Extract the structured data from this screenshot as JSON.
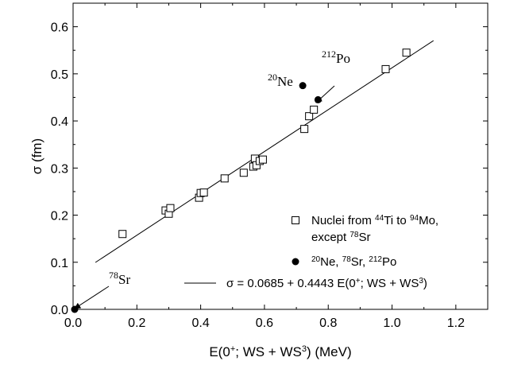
{
  "chart_data": {
    "type": "scatter",
    "xlabel_parts": [
      "E(0",
      "+",
      "; WS + WS",
      "3",
      ") (MeV)"
    ],
    "ylabel": "σ (fm)",
    "xlim": [
      0.0,
      1.3
    ],
    "ylim": [
      0.0,
      0.65
    ],
    "xticks": [
      "0.0",
      "0.2",
      "0.4",
      "0.6",
      "0.8",
      "1.0",
      "1.2"
    ],
    "yticks": [
      "0.0",
      "0.1",
      "0.2",
      "0.3",
      "0.4",
      "0.5",
      "0.6"
    ],
    "grid": false,
    "legend_position": "bottom-right",
    "series": [
      {
        "marker": "open-square",
        "legend_lines": [
          [
            "Nuclei from ",
            "44",
            "Ti to ",
            "94",
            "Mo,"
          ],
          [
            "except ",
            "78",
            "Sr"
          ]
        ],
        "points": [
          [
            0.155,
            0.16
          ],
          [
            0.29,
            0.21
          ],
          [
            0.3,
            0.203
          ],
          [
            0.305,
            0.215
          ],
          [
            0.395,
            0.237
          ],
          [
            0.4,
            0.247
          ],
          [
            0.41,
            0.248
          ],
          [
            0.475,
            0.278
          ],
          [
            0.535,
            0.29
          ],
          [
            0.565,
            0.303
          ],
          [
            0.57,
            0.32
          ],
          [
            0.575,
            0.306
          ],
          [
            0.585,
            0.315
          ],
          [
            0.595,
            0.318
          ],
          [
            0.725,
            0.383
          ],
          [
            0.74,
            0.41
          ],
          [
            0.755,
            0.424
          ],
          [
            0.98,
            0.51
          ],
          [
            1.045,
            0.545
          ]
        ]
      },
      {
        "marker": "filled-circle",
        "legend_lines": [
          [
            "",
            "20",
            "Ne, ",
            "78",
            "Sr, ",
            "212",
            "Po"
          ]
        ],
        "points": [
          [
            0.72,
            0.475
          ],
          [
            0.768,
            0.445
          ],
          [
            0.005,
            0.0
          ]
        ]
      }
    ],
    "fit": {
      "intercept": 0.0685,
      "slope": 0.4443,
      "x_range": [
        0.07,
        1.13
      ],
      "legend_parts": [
        "σ = 0.0685 + 0.4443 E(0",
        "+",
        "; WS + WS",
        "3",
        ")"
      ]
    },
    "annotations": [
      {
        "id": "ne20",
        "mass": "20",
        "symbol": "Ne",
        "target": [
          0.72,
          0.475
        ],
        "arrow": false
      },
      {
        "id": "po212",
        "mass": "212",
        "symbol": "Po",
        "target": [
          0.768,
          0.445
        ],
        "arrow": true
      },
      {
        "id": "sr78",
        "mass": "78",
        "symbol": "Sr",
        "target": [
          0.005,
          0.0
        ],
        "arrow": true
      }
    ]
  }
}
